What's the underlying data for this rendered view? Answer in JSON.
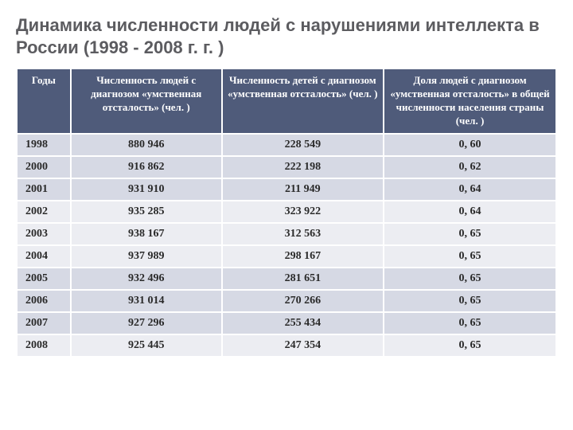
{
  "title": "Динамика численности людей с нарушениями интеллекта в России (1998 - 2008 г. г. )",
  "table": {
    "columns": [
      "Годы",
      "Численность людей с диагнозом «умственная отсталость» (чел. )",
      "Численность детей с диагнозом «умственная отсталость» (чел. )",
      "Доля людей с диагнозом «умственная отсталость» в общей численности населения страны (чел. )"
    ],
    "rows": [
      [
        "1998",
        "880 946",
        "228 549",
        "0, 60"
      ],
      [
        "2000",
        "916 862",
        "222 198",
        "0, 62"
      ],
      [
        "2001",
        "931 910",
        "211 949",
        "0, 64"
      ],
      [
        "2002",
        "935 285",
        "323 922",
        "0, 64"
      ],
      [
        "2003",
        "938 167",
        "312 563",
        "0, 65"
      ],
      [
        "2004",
        "937 989",
        "298 167",
        "0, 65"
      ],
      [
        "2005",
        "932 496",
        "281 651",
        "0, 65"
      ],
      [
        "2006",
        "931 014",
        "270 266",
        "0, 65"
      ],
      [
        "2007",
        "927 296",
        "255 434",
        "0, 65"
      ],
      [
        "2008",
        "925 445",
        "247 354",
        "0, 65"
      ]
    ],
    "header_bg": "#4f5b7a",
    "header_fg": "#ffffff",
    "band_a_bg": "#d6d9e4",
    "band_b_bg": "#ecedf2",
    "title_color": "#5c5c60",
    "title_fontsize": 22,
    "cell_fontsize": 14,
    "header_fontsize": 13
  }
}
